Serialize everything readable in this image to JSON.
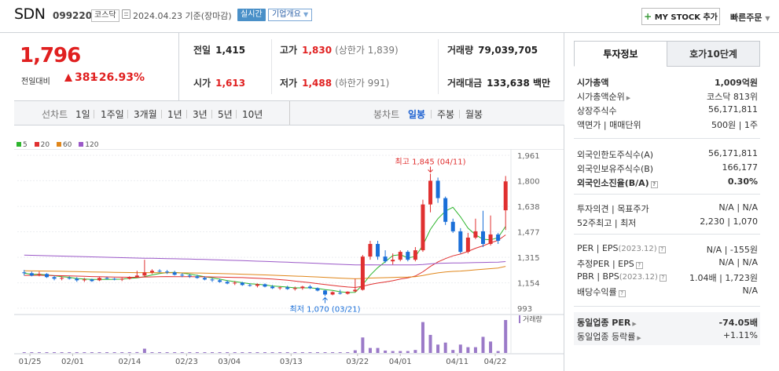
{
  "header": {
    "name": "SDN",
    "code": "099220",
    "market": "코스닥",
    "date": "2024.04.23 기준(장마감)",
    "realtime": "실시간",
    "company_overview": "기업개요",
    "mystock": "MY STOCK 추가",
    "quick_order": "빠른주문"
  },
  "price": {
    "current": "1,796",
    "change_label": "전일대비",
    "change_abs": "381",
    "change_pct": "+26.93%"
  },
  "quote": {
    "prev_label": "전일",
    "prev": "1,415",
    "open_label": "시가",
    "open": "1,613",
    "high_label": "고가",
    "high": "1,830",
    "upper_limit": "(상한가 1,839)",
    "low_label": "저가",
    "low": "1,488",
    "lower_limit": "(하한가 991)",
    "volume_label": "거래량",
    "volume": "79,039,705",
    "amount_label": "거래대금",
    "amount": "133,638 백만"
  },
  "period_bar": {
    "line_label": "선차트",
    "line_options": [
      "1일",
      "1주일",
      "3개월",
      "1년",
      "3년",
      "5년",
      "10년"
    ],
    "candle_label": "봉차트",
    "candle_options": [
      "일봉",
      "주봉",
      "월봉"
    ],
    "candle_selected": "일봉"
  },
  "chart_data": {
    "type": "candlestick",
    "legend": [
      {
        "label": "5",
        "color": "#2db52d"
      },
      {
        "label": "20",
        "color": "#e03030"
      },
      {
        "label": "60",
        "color": "#e0861a"
      },
      {
        "label": "120",
        "color": "#9b59c8"
      }
    ],
    "y_ticks": [
      "1,961",
      "1,800",
      "1,638",
      "1,477",
      "1,315",
      "1,154",
      "993"
    ],
    "ylim": [
      993,
      1961
    ],
    "x_ticks": [
      "01/25",
      "02/01",
      "02/14",
      "02/23",
      "03/04",
      "03/13",
      "03/22",
      "04/01",
      "04/11",
      "04/22"
    ],
    "high_annotation": "최고 1,845 (04/11)",
    "low_annotation": "최저 1,070 (03/21)",
    "volume_label": "거래량",
    "up_color": "#e03030",
    "down_color": "#1a6fd8",
    "candles": [
      [
        1220,
        1235,
        1200,
        1215
      ],
      [
        1215,
        1225,
        1195,
        1200
      ],
      [
        1205,
        1225,
        1195,
        1210
      ],
      [
        1210,
        1215,
        1185,
        1190
      ],
      [
        1190,
        1200,
        1170,
        1180
      ],
      [
        1180,
        1195,
        1170,
        1185
      ],
      [
        1185,
        1195,
        1175,
        1180
      ],
      [
        1180,
        1190,
        1160,
        1170
      ],
      [
        1170,
        1185,
        1160,
        1175
      ],
      [
        1175,
        1180,
        1160,
        1165
      ],
      [
        1170,
        1190,
        1165,
        1185
      ],
      [
        1185,
        1190,
        1175,
        1180
      ],
      [
        1180,
        1185,
        1170,
        1175
      ],
      [
        1175,
        1185,
        1165,
        1180
      ],
      [
        1180,
        1195,
        1175,
        1190
      ],
      [
        1190,
        1230,
        1185,
        1200
      ],
      [
        1200,
        1300,
        1190,
        1220
      ],
      [
        1220,
        1240,
        1210,
        1230
      ],
      [
        1230,
        1240,
        1220,
        1225
      ],
      [
        1225,
        1235,
        1210,
        1220
      ],
      [
        1220,
        1230,
        1200,
        1205
      ],
      [
        1205,
        1215,
        1190,
        1200
      ],
      [
        1200,
        1210,
        1185,
        1195
      ],
      [
        1195,
        1205,
        1180,
        1185
      ],
      [
        1185,
        1195,
        1170,
        1175
      ],
      [
        1175,
        1185,
        1160,
        1170
      ],
      [
        1170,
        1180,
        1155,
        1160
      ],
      [
        1160,
        1170,
        1145,
        1150
      ],
      [
        1150,
        1165,
        1140,
        1155
      ],
      [
        1155,
        1160,
        1135,
        1140
      ],
      [
        1140,
        1150,
        1130,
        1135
      ],
      [
        1135,
        1150,
        1125,
        1145
      ],
      [
        1145,
        1150,
        1125,
        1130
      ],
      [
        1130,
        1140,
        1115,
        1120
      ],
      [
        1120,
        1130,
        1110,
        1125
      ],
      [
        1125,
        1135,
        1110,
        1115
      ],
      [
        1115,
        1130,
        1105,
        1120
      ],
      [
        1120,
        1135,
        1110,
        1130
      ],
      [
        1130,
        1140,
        1115,
        1120
      ],
      [
        1120,
        1125,
        1100,
        1105
      ],
      [
        1105,
        1110,
        1070,
        1080
      ],
      [
        1080,
        1100,
        1075,
        1095
      ],
      [
        1090,
        1110,
        1080,
        1085
      ],
      [
        1085,
        1100,
        1080,
        1098
      ],
      [
        1100,
        1180,
        1095,
        1110
      ],
      [
        1110,
        1330,
        1105,
        1320
      ],
      [
        1320,
        1420,
        1300,
        1400
      ],
      [
        1400,
        1420,
        1300,
        1320
      ],
      [
        1320,
        1360,
        1280,
        1290
      ],
      [
        1290,
        1340,
        1270,
        1300
      ],
      [
        1300,
        1360,
        1290,
        1350
      ],
      [
        1350,
        1360,
        1290,
        1300
      ],
      [
        1300,
        1380,
        1290,
        1360
      ],
      [
        1360,
        1680,
        1350,
        1650
      ],
      [
        1650,
        1845,
        1600,
        1800
      ],
      [
        1800,
        1820,
        1660,
        1690
      ],
      [
        1690,
        1700,
        1520,
        1540
      ],
      [
        1540,
        1560,
        1470,
        1480
      ],
      [
        1480,
        1500,
        1340,
        1350
      ],
      [
        1350,
        1470,
        1340,
        1440
      ],
      [
        1440,
        1560,
        1430,
        1480
      ],
      [
        1480,
        1610,
        1380,
        1400
      ],
      [
        1400,
        1580,
        1390,
        1460
      ],
      [
        1460,
        1470,
        1400,
        1420
      ],
      [
        1613,
        1830,
        1488,
        1796
      ]
    ]
  },
  "tabs": {
    "invest": "투자정보",
    "orderbook": "호가10단계"
  },
  "info": {
    "mcap_label": "시가총액",
    "mcap": "1,009억원",
    "mcap_rank_label": "시가총액순위",
    "mcap_rank": "코스닥 813위",
    "shares_label": "상장주식수",
    "shares": "56,171,811",
    "par_label": "액면가",
    "unit_label": "매매단위",
    "par": "500원",
    "unit": "1주",
    "foreign_limit_label": "외국인한도주식수(A)",
    "foreign_limit": "56,171,811",
    "foreign_hold_label": "외국인보유주식수(B)",
    "foreign_hold": "166,177",
    "foreign_ratio_label": "외국인소진율(B/A)",
    "foreign_ratio": "0.30%",
    "opinion_label": "투자의견",
    "target_label": "목표주가",
    "opinion": "N/A",
    "target": "N/A",
    "w52_label": "52주최고",
    "w52_low_label": "최저",
    "w52_high": "2,230",
    "w52_low": "1,070",
    "per_label": "PER",
    "eps_label": "EPS",
    "per_period": "(2023.12)",
    "per": "N/A",
    "eps": "-155원",
    "est_per_label": "추정PER",
    "est_eps_label": "EPS",
    "est_per": "N/A",
    "est_eps": "N/A",
    "pbr_label": "PBR",
    "bps_label": "BPS",
    "pbr_period": "(2023.12)",
    "pbr": "1.04배",
    "bps": "1,723원",
    "div_label": "배당수익률",
    "div": "N/A",
    "sector_per_label": "동일업종 PER",
    "sector_per": "-74.05배",
    "sector_chg_label": "동일업종 등락률",
    "sector_chg": "+1.11%"
  }
}
